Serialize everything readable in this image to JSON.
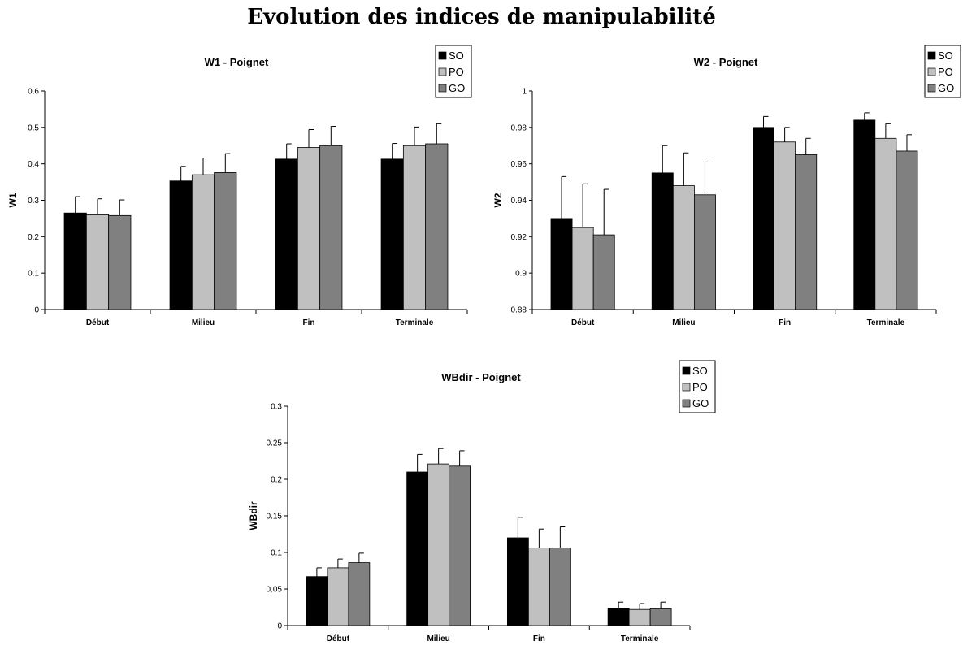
{
  "page_title": "Evolution des indices de manipulabilité",
  "colors": {
    "SO": "#000000",
    "PO": "#c0c0c0",
    "GO": "#808080"
  },
  "chart_data": [
    {
      "type": "bar",
      "title": "W1 - Poignet",
      "xlabel": "",
      "ylabel": "W1",
      "categories": [
        "Début",
        "Milieu",
        "Fin",
        "Terminale"
      ],
      "ylim": [
        0,
        0.6
      ],
      "yticks": [
        0,
        0.1,
        0.2,
        0.3,
        0.4,
        0.5,
        0.6
      ],
      "ytick_labels": [
        "0",
        "0.1",
        "0.2",
        "0.3",
        "0.4",
        "0.5",
        "0.6"
      ],
      "grid": false,
      "legend_position": "top-right",
      "series": [
        {
          "name": "SO",
          "values": [
            0.265,
            0.353,
            0.413,
            0.413
          ],
          "errors": [
            0.045,
            0.04,
            0.042,
            0.043
          ]
        },
        {
          "name": "PO",
          "values": [
            0.26,
            0.37,
            0.445,
            0.45
          ],
          "errors": [
            0.044,
            0.046,
            0.049,
            0.051
          ]
        },
        {
          "name": "GO",
          "values": [
            0.258,
            0.376,
            0.45,
            0.455
          ],
          "errors": [
            0.043,
            0.052,
            0.053,
            0.055
          ]
        }
      ]
    },
    {
      "type": "bar",
      "title": "W2 - Poignet",
      "xlabel": "",
      "ylabel": "W2",
      "categories": [
        "Début",
        "Milieu",
        "Fin",
        "Terminale"
      ],
      "ylim": [
        0.88,
        1
      ],
      "yticks": [
        0.88,
        0.9,
        0.92,
        0.94,
        0.96,
        0.98,
        1
      ],
      "ytick_labels": [
        "0.88",
        "0.9",
        "0.92",
        "0.94",
        "0.96",
        "0.98",
        "1"
      ],
      "grid": false,
      "legend_position": "top-right",
      "series": [
        {
          "name": "SO",
          "values": [
            0.93,
            0.955,
            0.98,
            0.984
          ],
          "errors": [
            0.023,
            0.015,
            0.006,
            0.004
          ]
        },
        {
          "name": "PO",
          "values": [
            0.925,
            0.948,
            0.972,
            0.974
          ],
          "errors": [
            0.024,
            0.018,
            0.008,
            0.008
          ]
        },
        {
          "name": "GO",
          "values": [
            0.921,
            0.943,
            0.965,
            0.967
          ],
          "errors": [
            0.025,
            0.018,
            0.009,
            0.009
          ]
        }
      ]
    },
    {
      "type": "bar",
      "title": "WBdir - Poignet",
      "xlabel": "",
      "ylabel": "WBdir",
      "categories": [
        "Début",
        "Milieu",
        "Fin",
        "Terminale"
      ],
      "ylim": [
        0,
        0.3
      ],
      "yticks": [
        0,
        0.05,
        0.1,
        0.15,
        0.2,
        0.25,
        0.3
      ],
      "ytick_labels": [
        "0",
        "0.05",
        "0.1",
        "0.15",
        "0.2",
        "0.25",
        "0.3"
      ],
      "grid": false,
      "legend_position": "top-right",
      "series": [
        {
          "name": "SO",
          "values": [
            0.067,
            0.21,
            0.12,
            0.024
          ],
          "errors": [
            0.012,
            0.024,
            0.028,
            0.008
          ]
        },
        {
          "name": "PO",
          "values": [
            0.079,
            0.221,
            0.106,
            0.022
          ],
          "errors": [
            0.012,
            0.021,
            0.026,
            0.008
          ]
        },
        {
          "name": "GO",
          "values": [
            0.086,
            0.218,
            0.106,
            0.023
          ],
          "errors": [
            0.013,
            0.021,
            0.029,
            0.009
          ]
        }
      ]
    }
  ]
}
